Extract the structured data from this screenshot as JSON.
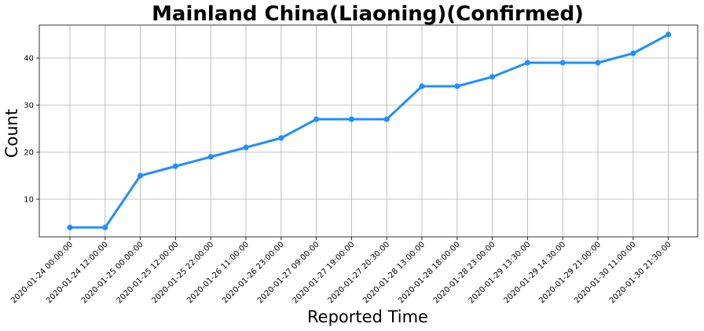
{
  "chart_data": {
    "type": "line",
    "title": "Mainland China(Liaoning)(Confirmed)",
    "xlabel": "Reported Time",
    "ylabel": "Count",
    "categories": [
      "2020-01-24 00:00:00",
      "2020-01-24 12:00:00",
      "2020-01-25 00:00:00",
      "2020-01-25 12:00:00",
      "2020-01-25 22:00:00",
      "2020-01-26 11:00:00",
      "2020-01-26 23:00:00",
      "2020-01-27 09:00:00",
      "2020-01-27 19:00:00",
      "2020-01-27 20:30:00",
      "2020-01-28 13:00:00",
      "2020-01-28 18:00:00",
      "2020-01-28 23:00:00",
      "2020-01-29 13:30:00",
      "2020-01-29 14:30:00",
      "2020-01-29 21:00:00",
      "2020-01-30 11:00:00",
      "2020-01-30 21:30:00"
    ],
    "series": [
      {
        "values": [
          4,
          4,
          15,
          17,
          19,
          21,
          23,
          27,
          27,
          27,
          34,
          34,
          36,
          39,
          39,
          39,
          41,
          45
        ]
      }
    ],
    "ylim": [
      2,
      47
    ],
    "yticks": [
      10,
      20,
      30,
      40
    ],
    "grid": true,
    "line_color": "#1e90ff"
  }
}
